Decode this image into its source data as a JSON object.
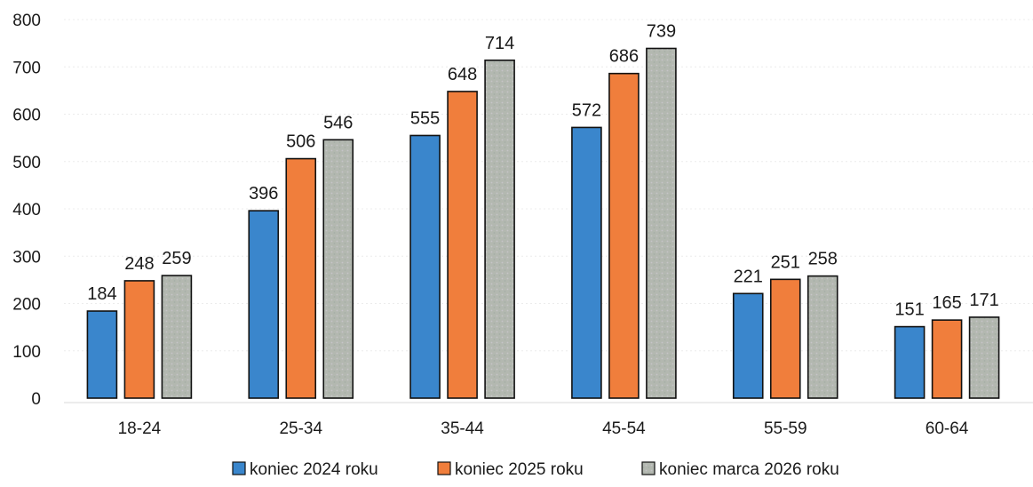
{
  "chart_data": {
    "type": "bar",
    "title": "",
    "xlabel": "",
    "ylabel": "",
    "ylim": [
      0,
      800
    ],
    "yticks": [
      0,
      100,
      200,
      300,
      400,
      500,
      600,
      700,
      800
    ],
    "grid": true,
    "legend_position": "bottom",
    "categories": [
      "18-24",
      "25-34",
      "35-44",
      "45-54",
      "55-59",
      "60-64"
    ],
    "series": [
      {
        "name": "koniec 2024 roku",
        "color": "#3a86cc",
        "values": [
          184,
          396,
          555,
          572,
          221,
          151
        ]
      },
      {
        "name": "koniec 2025 roku",
        "color": "#f07e3c",
        "values": [
          248,
          506,
          648,
          686,
          251,
          165
        ]
      },
      {
        "name": "koniec marca 2026 roku",
        "color": "#b3b8b0",
        "values": [
          259,
          546,
          714,
          739,
          258,
          171
        ]
      }
    ]
  }
}
